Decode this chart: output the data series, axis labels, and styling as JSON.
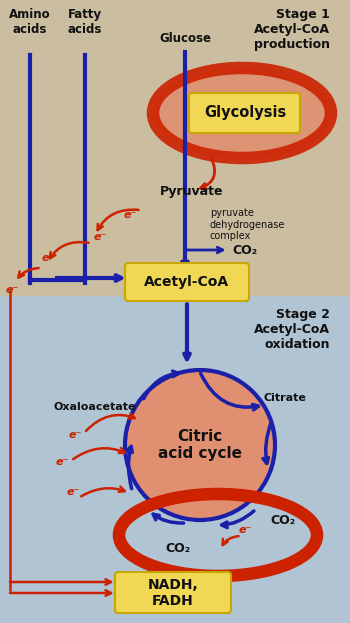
{
  "bg_top": "#cbbda0",
  "bg_bottom": "#b0c4d4",
  "blue": "#1a20a8",
  "red": "#cc2200",
  "yellow_fill": "#f0d855",
  "yellow_edge": "#c8a800",
  "orange_fill": "#e09070",
  "dark": "#111111",
  "stage1_title": "Stage 1\nAcetyl-CoA\nproduction",
  "stage2_title": "Stage 2\nAcetyl-CoA\noxidation",
  "amino_label": "Amino\nacids",
  "fatty_label": "Fatty\nacids",
  "glucose_label": "Glucose",
  "pyruvate_label": "Pyruvate",
  "pyr_dehyd_label": "pyruvate\ndehydrogenase\ncomplex",
  "co2_label": "CO₂",
  "acetylcoa_label": "Acetyl-CoA",
  "oxaloacetate_label": "Oxaloacetate",
  "citrate_label": "Citrate",
  "citric_label": "Citric\nacid cycle",
  "nadh_label": "NADH,\nFADH",
  "glycolysis_label": "Glycolysis",
  "eminus": "e⁻",
  "fig_w": 3.5,
  "fig_h": 6.23,
  "dpi": 100
}
